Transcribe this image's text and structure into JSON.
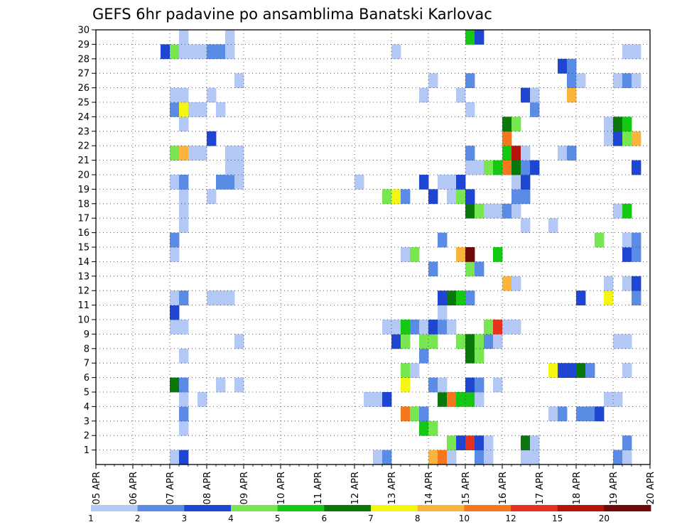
{
  "chart_data": {
    "type": "heatmap",
    "title": "GEFS 6hr padavine po ansamblima Banatski Karlovac",
    "x_ticks": [
      "05 APR",
      "06 APR",
      "07 APR",
      "08 APR",
      "09 APR",
      "10 APR",
      "11 APR",
      "12 APR",
      "13 APR",
      "14 APR",
      "15 APR",
      "16 APR",
      "17 APR",
      "18 APR",
      "19 APR",
      "20 APR"
    ],
    "y_ticks": [
      1,
      2,
      3,
      4,
      5,
      6,
      7,
      8,
      9,
      10,
      11,
      12,
      13,
      14,
      15,
      16,
      17,
      18,
      19,
      20,
      21,
      22,
      23,
      24,
      25,
      26,
      27,
      28,
      29,
      30
    ],
    "xlim": [
      "05 APR 00",
      "20 APR 00"
    ],
    "ylim": [
      0,
      30
    ],
    "x_step_hours": 6,
    "grid": "dotted",
    "colorbar": {
      "levels": [
        1,
        2,
        3,
        4,
        5,
        6,
        7,
        8,
        10,
        12,
        15,
        20
      ],
      "colors": [
        "#b4c8f5",
        "#5a8ce6",
        "#1e46d2",
        "#78e650",
        "#14c814",
        "#0a780a",
        "#f5f514",
        "#fab43c",
        "#f5781e",
        "#e6321e",
        "#b4140a",
        "#6e0a0a"
      ]
    },
    "series": [
      {
        "member": 1,
        "cells": [
          [
            8,
            0
          ],
          [
            9,
            2
          ],
          [
            30,
            0
          ],
          [
            31,
            1
          ],
          [
            36,
            7
          ],
          [
            37,
            8
          ],
          [
            38,
            0
          ],
          [
            41,
            1
          ],
          [
            42,
            0
          ],
          [
            46,
            0
          ],
          [
            47,
            0
          ],
          [
            56,
            1
          ],
          [
            57,
            0
          ]
        ]
      },
      {
        "member": 2,
        "cells": [
          [
            38,
            3
          ],
          [
            39,
            2
          ],
          [
            40,
            9
          ],
          [
            41,
            2
          ],
          [
            42,
            0
          ],
          [
            46,
            5
          ],
          [
            47,
            0
          ],
          [
            57,
            1
          ]
        ]
      },
      {
        "member": 3,
        "cells": [
          [
            9,
            0
          ],
          [
            35,
            4
          ],
          [
            36,
            3
          ]
        ]
      },
      {
        "member": 4,
        "cells": [
          [
            9,
            1
          ],
          [
            33,
            8
          ],
          [
            34,
            3
          ],
          [
            35,
            1
          ],
          [
            49,
            0
          ],
          [
            50,
            1
          ],
          [
            52,
            1
          ],
          [
            53,
            1
          ],
          [
            54,
            2
          ]
        ]
      },
      {
        "member": 5,
        "cells": [
          [
            9,
            0
          ],
          [
            11,
            0
          ],
          [
            29,
            0
          ],
          [
            30,
            0
          ],
          [
            31,
            2
          ],
          [
            37,
            5
          ],
          [
            38,
            8
          ],
          [
            39,
            4
          ],
          [
            40,
            4
          ],
          [
            41,
            0
          ],
          [
            55,
            0
          ],
          [
            56,
            0
          ]
        ]
      },
      {
        "member": 6,
        "cells": [
          [
            8,
            5
          ],
          [
            9,
            1
          ],
          [
            13,
            0
          ],
          [
            15,
            0
          ],
          [
            33,
            6
          ],
          [
            36,
            1
          ],
          [
            37,
            0
          ],
          [
            40,
            2
          ],
          [
            41,
            1
          ],
          [
            43,
            0
          ]
        ]
      },
      {
        "member": 7,
        "cells": [
          [
            33,
            3
          ],
          [
            34,
            0
          ],
          [
            49,
            6
          ],
          [
            50,
            2
          ],
          [
            51,
            2
          ],
          [
            52,
            5
          ],
          [
            53,
            1
          ],
          [
            57,
            0
          ]
        ]
      },
      {
        "member": 8,
        "cells": [
          [
            9,
            0
          ],
          [
            35,
            1
          ],
          [
            40,
            5
          ],
          [
            41,
            3
          ]
        ]
      },
      {
        "member": 9,
        "cells": [
          [
            15,
            0
          ],
          [
            32,
            2
          ],
          [
            33,
            3
          ],
          [
            35,
            3
          ],
          [
            36,
            3
          ],
          [
            39,
            3
          ],
          [
            40,
            5
          ],
          [
            41,
            3
          ],
          [
            42,
            1
          ],
          [
            43,
            0
          ],
          [
            56,
            0
          ],
          [
            57,
            0
          ]
        ]
      },
      {
        "member": 10,
        "cells": [
          [
            8,
            0
          ],
          [
            9,
            0
          ],
          [
            31,
            0
          ],
          [
            32,
            0
          ],
          [
            33,
            4
          ],
          [
            34,
            1
          ],
          [
            35,
            0
          ],
          [
            36,
            2
          ],
          [
            37,
            1
          ],
          [
            38,
            0
          ],
          [
            42,
            3
          ],
          [
            43,
            9
          ],
          [
            44,
            0
          ],
          [
            45,
            0
          ]
        ]
      },
      {
        "member": 11,
        "cells": [
          [
            8,
            2
          ],
          [
            37,
            0
          ]
        ]
      },
      {
        "member": 12,
        "cells": [
          [
            8,
            0
          ],
          [
            9,
            1
          ],
          [
            12,
            0
          ],
          [
            13,
            0
          ],
          [
            14,
            0
          ],
          [
            37,
            2
          ],
          [
            38,
            5
          ],
          [
            39,
            4
          ],
          [
            40,
            1
          ],
          [
            52,
            2
          ],
          [
            55,
            6
          ],
          [
            58,
            1
          ]
        ]
      },
      {
        "member": 13,
        "cells": [
          [
            44,
            7
          ],
          [
            45,
            0
          ],
          [
            55,
            0
          ],
          [
            57,
            0
          ],
          [
            58,
            2
          ]
        ]
      },
      {
        "member": 14,
        "cells": [
          [
            36,
            1
          ],
          [
            40,
            3
          ],
          [
            41,
            1
          ]
        ]
      },
      {
        "member": 15,
        "cells": [
          [
            8,
            0
          ],
          [
            33,
            0
          ],
          [
            34,
            3
          ],
          [
            39,
            7
          ],
          [
            40,
            11
          ],
          [
            43,
            4
          ],
          [
            57,
            2
          ],
          [
            58,
            1
          ]
        ]
      },
      {
        "member": 16,
        "cells": [
          [
            8,
            1
          ],
          [
            37,
            1
          ],
          [
            54,
            3
          ],
          [
            57,
            0
          ],
          [
            58,
            1
          ]
        ]
      },
      {
        "member": 17,
        "cells": [
          [
            9,
            0
          ],
          [
            46,
            0
          ],
          [
            49,
            0
          ]
        ]
      },
      {
        "member": 18,
        "cells": [
          [
            9,
            0
          ],
          [
            40,
            5
          ],
          [
            41,
            3
          ],
          [
            42,
            0
          ],
          [
            43,
            0
          ],
          [
            44,
            1
          ],
          [
            45,
            0
          ],
          [
            56,
            0
          ],
          [
            57,
            4
          ]
        ]
      },
      {
        "member": 19,
        "cells": [
          [
            9,
            0
          ],
          [
            12,
            0
          ],
          [
            31,
            3
          ],
          [
            32,
            6
          ],
          [
            33,
            1
          ],
          [
            36,
            2
          ],
          [
            38,
            0
          ],
          [
            39,
            3
          ],
          [
            40,
            2
          ],
          [
            45,
            1
          ],
          [
            46,
            1
          ]
        ]
      },
      {
        "member": 20,
        "cells": [
          [
            8,
            0
          ],
          [
            9,
            1
          ],
          [
            13,
            1
          ],
          [
            14,
            1
          ],
          [
            15,
            0
          ],
          [
            28,
            0
          ],
          [
            35,
            2
          ],
          [
            37,
            0
          ],
          [
            38,
            0
          ],
          [
            39,
            2
          ],
          [
            45,
            0
          ],
          [
            46,
            2
          ]
        ]
      },
      {
        "member": 21,
        "cells": [
          [
            14,
            0
          ],
          [
            15,
            0
          ],
          [
            40,
            0
          ],
          [
            41,
            0
          ],
          [
            42,
            3
          ],
          [
            43,
            4
          ],
          [
            44,
            8
          ],
          [
            45,
            5
          ],
          [
            46,
            1
          ],
          [
            47,
            2
          ],
          [
            58,
            2
          ]
        ]
      },
      {
        "member": 22,
        "cells": [
          [
            8,
            3
          ],
          [
            9,
            7
          ],
          [
            10,
            0
          ],
          [
            11,
            0
          ],
          [
            14,
            0
          ],
          [
            15,
            0
          ],
          [
            40,
            1
          ],
          [
            44,
            4
          ],
          [
            45,
            10
          ],
          [
            46,
            0
          ],
          [
            50,
            0
          ],
          [
            51,
            1
          ]
        ]
      },
      {
        "member": 23,
        "cells": [
          [
            12,
            2
          ],
          [
            44,
            8
          ],
          [
            55,
            0
          ],
          [
            56,
            2
          ],
          [
            57,
            3
          ],
          [
            58,
            7
          ]
        ]
      },
      {
        "member": 24,
        "cells": [
          [
            9,
            0
          ],
          [
            44,
            5
          ],
          [
            45,
            3
          ],
          [
            55,
            0
          ],
          [
            56,
            5
          ],
          [
            57,
            4
          ]
        ]
      },
      {
        "member": 25,
        "cells": [
          [
            8,
            1
          ],
          [
            9,
            6
          ],
          [
            10,
            0
          ],
          [
            11,
            0
          ],
          [
            13,
            0
          ],
          [
            40,
            0
          ],
          [
            47,
            1
          ]
        ]
      },
      {
        "member": 26,
        "cells": [
          [
            8,
            0
          ],
          [
            9,
            0
          ],
          [
            12,
            0
          ],
          [
            35,
            0
          ],
          [
            39,
            0
          ],
          [
            46,
            2
          ],
          [
            47,
            0
          ],
          [
            51,
            7
          ]
        ]
      },
      {
        "member": 27,
        "cells": [
          [
            15,
            0
          ],
          [
            36,
            0
          ],
          [
            40,
            1
          ],
          [
            51,
            1
          ],
          [
            52,
            0
          ],
          [
            56,
            0
          ],
          [
            57,
            1
          ],
          [
            58,
            0
          ]
        ]
      },
      {
        "member": 28,
        "cells": [
          [
            50,
            2
          ],
          [
            51,
            1
          ]
        ]
      },
      {
        "member": 29,
        "cells": [
          [
            7,
            2
          ],
          [
            8,
            3
          ],
          [
            9,
            0
          ],
          [
            10,
            0
          ],
          [
            11,
            0
          ],
          [
            12,
            1
          ],
          [
            13,
            1
          ],
          [
            14,
            0
          ],
          [
            32,
            0
          ],
          [
            57,
            0
          ],
          [
            58,
            0
          ]
        ]
      },
      {
        "member": 30,
        "cells": [
          [
            9,
            0
          ],
          [
            14,
            0
          ],
          [
            40,
            4
          ],
          [
            41,
            2
          ]
        ]
      }
    ]
  }
}
